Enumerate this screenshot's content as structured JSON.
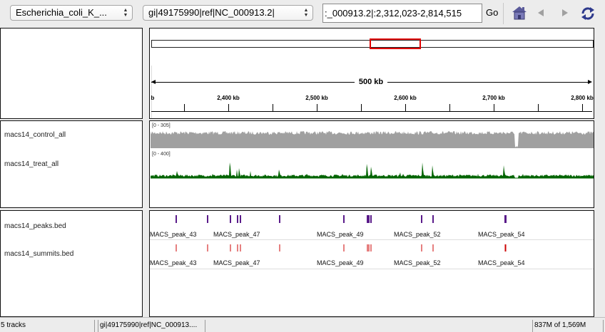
{
  "toolbar": {
    "genome": "Escherichia_coli_K_...",
    "chromosome": "gi|49175990|ref|NC_000913.2|",
    "locus": ":_000913.2|:2,312,023-2,814,515",
    "go_label": "Go",
    "icons": [
      "home-icon",
      "back-arrow-icon",
      "forward-arrow-icon",
      "refresh-icon"
    ]
  },
  "ruler": {
    "span_label": "500 kb",
    "tick_labels": [
      "b",
      "2,400 kb",
      "2,500 kb",
      "2,600 kb",
      "2,700 kb",
      "2,800 kb"
    ]
  },
  "tracks": {
    "control": {
      "name": "macs14_control_all",
      "range": "[0 - 305]",
      "color": "#a0a0a0"
    },
    "treat": {
      "name": "macs14_treat_all",
      "range": "[0 - 400]",
      "color": "#006400"
    },
    "peaks": {
      "name": "macs14_peaks.bed",
      "color": "#5a1b8a",
      "labels": [
        "MACS_peak_43",
        "MACS_peak_47",
        "MACS_peak_49",
        "MACS_peak_52",
        "MACS_peak_54"
      ]
    },
    "summits": {
      "name": "macs14_summits.bed",
      "color": "#cc0000",
      "labels": [
        "MACS_peak_43",
        "MACS_peak_47",
        "MACS_peak_49",
        "MACS_peak_52",
        "MACS_peak_54"
      ]
    }
  },
  "status": {
    "tracks": "5 tracks",
    "chromosome": "gi|49175990|ref|NC_000913....",
    "memory": "837M of 1,569M"
  }
}
